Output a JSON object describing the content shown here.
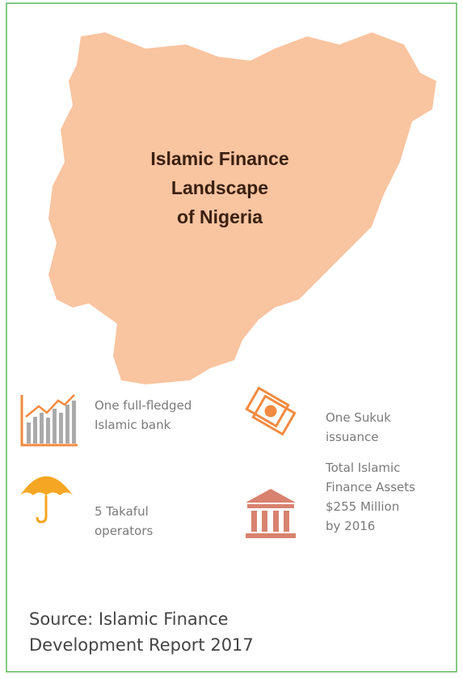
{
  "title": {
    "lines": [
      "Islamic Finance",
      "Landscape",
      "of Nigeria"
    ]
  },
  "items": [
    {
      "lines": [
        "One full-fledged",
        "Islamic bank"
      ]
    },
    {
      "lines": [
        "One Sukuk",
        "issuance"
      ]
    },
    {
      "lines": [
        "5 Takaful",
        "operators"
      ]
    },
    {
      "lines": [
        "Total Islamic",
        "Finance Assets",
        "$255 Million",
        "by 2016"
      ]
    }
  ],
  "source": {
    "lines": [
      "Source: Islamic Finance",
      "Development Report 2017"
    ]
  }
}
